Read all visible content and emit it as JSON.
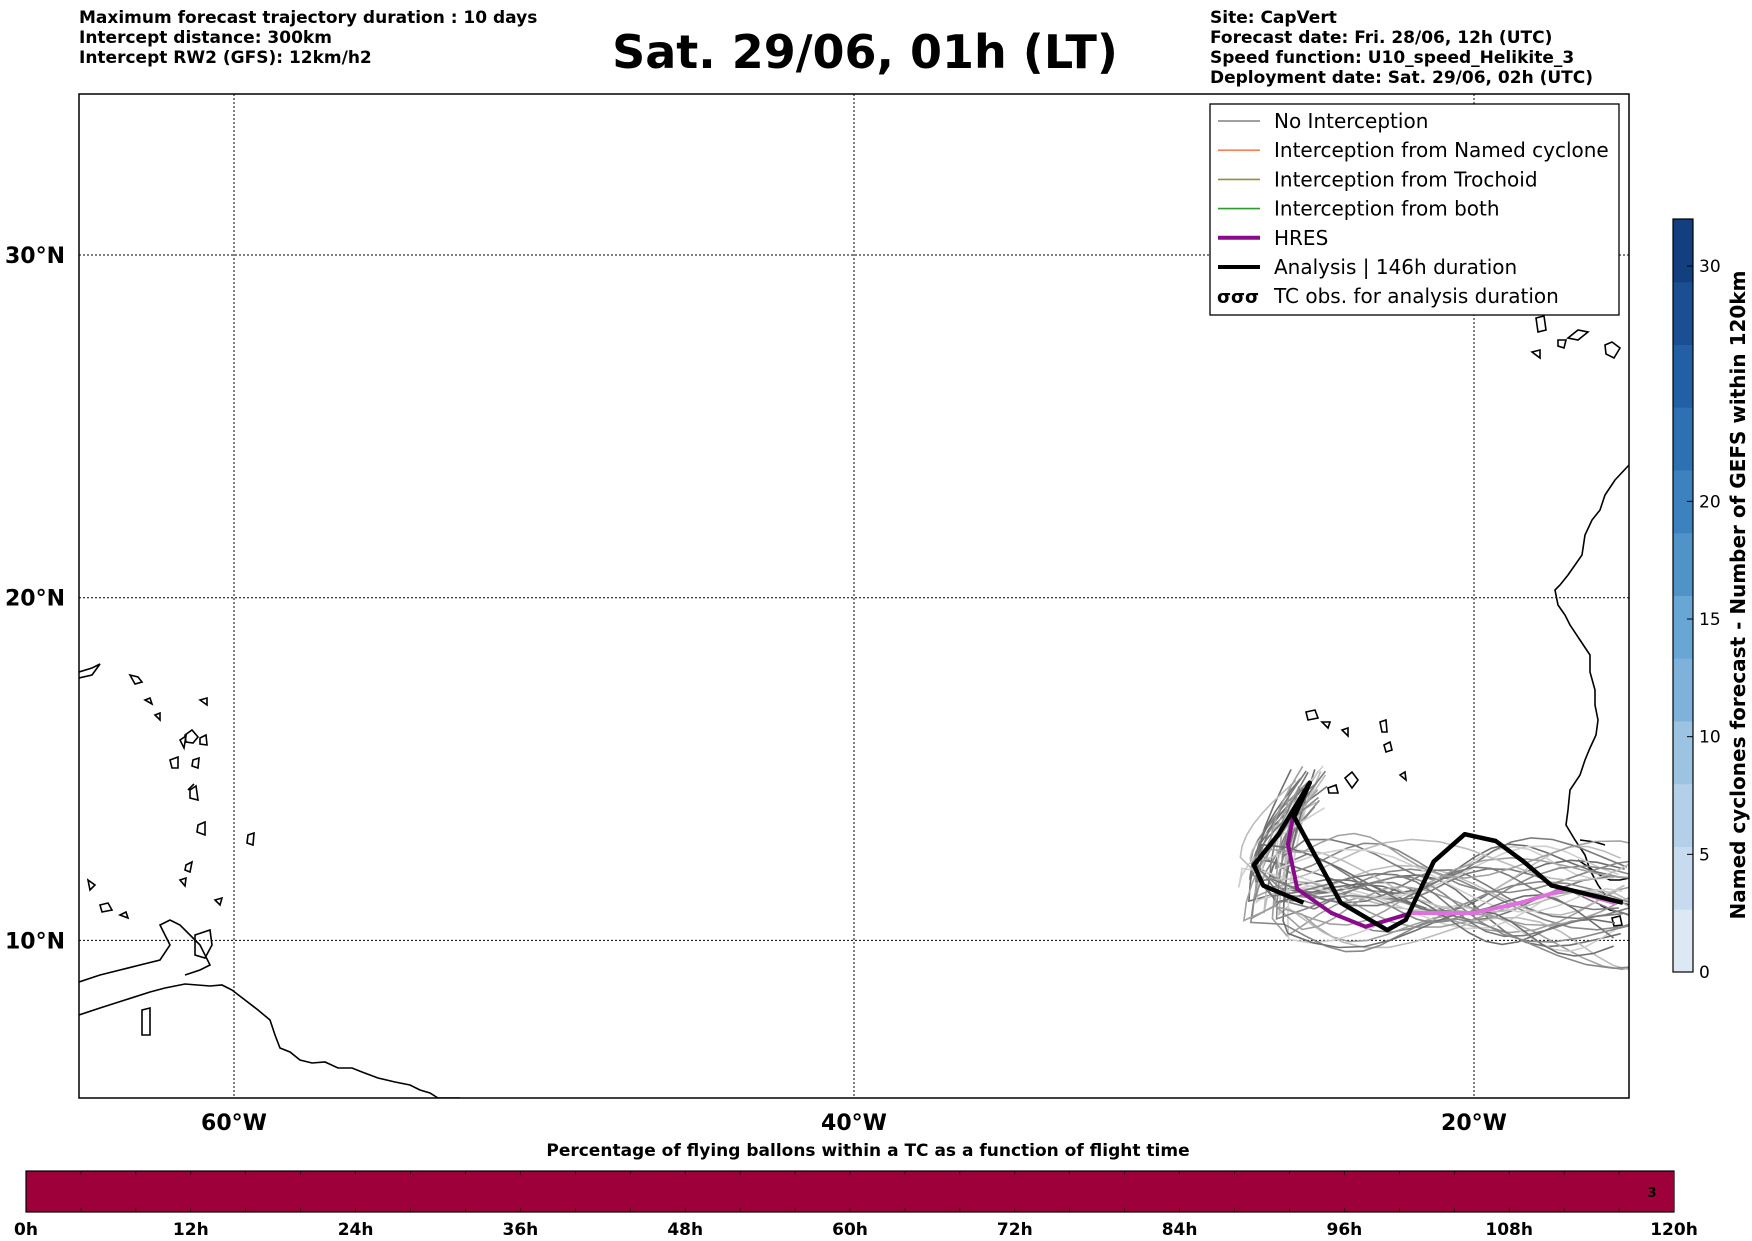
{
  "header": {
    "left": [
      "Maximum forecast trajectory duration : 10 days",
      "Intercept distance: 300km",
      "Intercept RW2 (GFS):  12km/h2"
    ],
    "title": "Sat. 29/06, 01h (LT)",
    "right": [
      "Site: CapVert",
      "Forecast date: Fri. 28/06, 12h (UTC)",
      "Speed function: U10_speed_Helikite_3",
      "Deployment date: Sat. 29/06, 02h (UTC)"
    ]
  },
  "map": {
    "lon_range": [
      -65,
      -15
    ],
    "lat_range": [
      5.4,
      34.7
    ],
    "lon_ticks": [
      {
        "value": -60,
        "label": "60°W"
      },
      {
        "value": -40,
        "label": "40°W"
      },
      {
        "value": -20,
        "label": "20°W"
      }
    ],
    "lat_ticks": [
      {
        "value": 30,
        "label": "30°N"
      },
      {
        "value": 20,
        "label": "20°N"
      },
      {
        "value": 10,
        "label": "10°N"
      }
    ],
    "grid": true
  },
  "legend": {
    "placement": "top-right",
    "items": [
      {
        "label": "No Interception",
        "color": "#808080",
        "style": "thin"
      },
      {
        "label": "Interception from Named cyclone",
        "color": "#ff7f50",
        "style": "thin"
      },
      {
        "label": "Interception from Trochoid",
        "color": "#9b8e3a",
        "style": "thin"
      },
      {
        "label": "Interception from both",
        "color": "#2e9a2e",
        "style": "thin"
      },
      {
        "label": "HRES",
        "color": "#8b0a8b",
        "style": "thick"
      },
      {
        "label": "Analysis | 146h duration",
        "color": "#000000",
        "style": "thick"
      },
      {
        "label": "TC obs. for analysis duration",
        "color": "#000000",
        "style": "symbol"
      }
    ]
  },
  "colorbar": {
    "label": "Named cyclones forecast - Number of GEFS within 120km",
    "ticks": [
      {
        "value": 0,
        "label": "0"
      },
      {
        "value": 5,
        "label": "5"
      },
      {
        "value": 10,
        "label": "10"
      },
      {
        "value": 15,
        "label": "15"
      },
      {
        "value": 20,
        "label": "20"
      },
      {
        "value": 30,
        "label": "30"
      }
    ],
    "max": 32,
    "colors": [
      "#dce8f4",
      "#c8dbee",
      "#b4d0e8",
      "#9cc4e2",
      "#7fb2da",
      "#68a6d6",
      "#4f93c9",
      "#3c82bf",
      "#2e71b3",
      "#235fa4",
      "#1a4f93",
      "#113f80"
    ]
  },
  "trajectories": {
    "analysis": [
      [
        -25.5,
        11.1
      ],
      [
        -26.8,
        11.6
      ],
      [
        -27.1,
        12.2
      ],
      [
        -26.3,
        13.1
      ],
      [
        -25.3,
        14.6
      ],
      [
        -25.8,
        13.6
      ],
      [
        -24.3,
        11.1
      ],
      [
        -22.8,
        10.3
      ],
      [
        -22.2,
        10.6
      ],
      [
        -21.3,
        12.3
      ],
      [
        -20.3,
        13.1
      ],
      [
        -19.3,
        12.9
      ],
      [
        -18.4,
        12.3
      ],
      [
        -17.5,
        11.6
      ],
      [
        -15.2,
        11.1
      ]
    ],
    "hres": [
      [
        -25.3,
        14.6
      ],
      [
        -25.8,
        13.8
      ],
      [
        -26.0,
        12.8
      ],
      [
        -25.7,
        11.5
      ],
      [
        -24.6,
        10.8
      ],
      [
        -23.5,
        10.4
      ],
      [
        -22.0,
        10.8
      ],
      [
        -20.0,
        10.8
      ],
      [
        -18.5,
        11.1
      ],
      [
        -17.0,
        11.5
      ],
      [
        -15.5,
        11.1
      ]
    ],
    "hres_colors": [
      "#8b0a8b",
      "#e070e0"
    ]
  },
  "flight_time_bar": {
    "title": "Percentage of flying ballons within a TC as a function of flight time",
    "tick_labels": [
      "0h",
      "12h",
      "24h",
      "36h",
      "48h",
      "60h",
      "72h",
      "84h",
      "96h",
      "108h",
      "120h"
    ],
    "fill_color": "#9e003a",
    "end_value_label": "3"
  }
}
